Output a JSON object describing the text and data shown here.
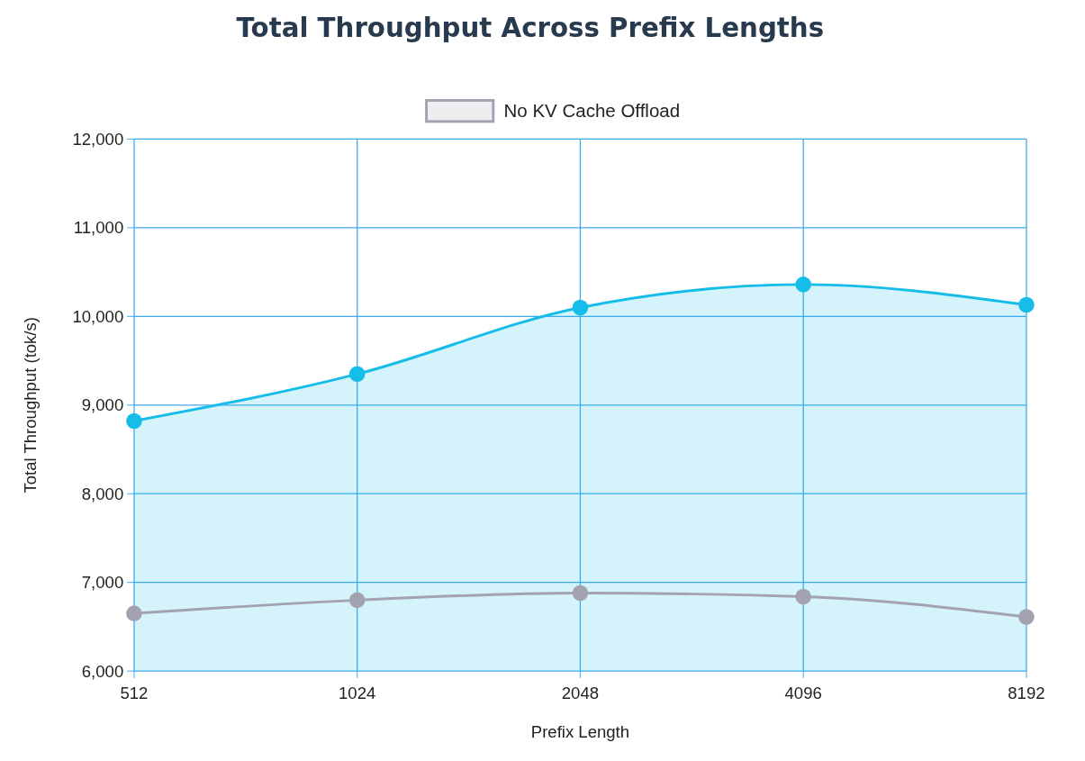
{
  "chart_data": {
    "type": "line",
    "title": "Total Throughput Across Prefix Lengths",
    "xlabel": "Prefix Length",
    "ylabel": "Total Throughput (tok/s)",
    "categories": [
      "512",
      "1024",
      "2048",
      "4096",
      "8192"
    ],
    "series": [
      {
        "type": "area",
        "color": "#16bde8",
        "values": [
          8820,
          9350,
          10100,
          10360,
          10130
        ]
      },
      {
        "name": "No KV Cache Offload",
        "color": "#a3a3b0",
        "values": [
          6650,
          6800,
          6880,
          6840,
          6610
        ]
      }
    ],
    "ylim": [
      6000,
      12000
    ],
    "yticks": [
      {
        "value": 6000,
        "label": "6,000"
      },
      {
        "value": 7000,
        "label": "7,000"
      },
      {
        "value": 8000,
        "label": "8,000"
      },
      {
        "value": 9000,
        "label": "9,000"
      },
      {
        "value": 10000,
        "label": "10,000"
      },
      {
        "value": 11000,
        "label": "11,000"
      },
      {
        "value": 12000,
        "label": "12,000"
      }
    ],
    "grid": true,
    "legend": "top",
    "marker": "circle"
  }
}
